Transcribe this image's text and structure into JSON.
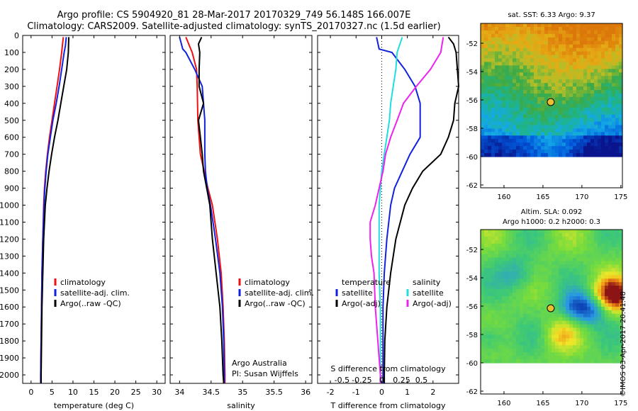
{
  "header": {
    "line1": "Argo profile: CS 5904920_81 28-Mar-2017 20170329_749 56.148S 166.007E",
    "line2": "Climatology: CARS2009. Satellite-adjusted climatology: synTS_20170327.nc (1.5d earlier)"
  },
  "depth_ticks": [
    "0",
    "100",
    "200",
    "300",
    "400",
    "500",
    "600",
    "700",
    "800",
    "900",
    "1000",
    "1100",
    "1200",
    "1300",
    "1400",
    "1500",
    "1600",
    "1700",
    "1800",
    "1900",
    "2000"
  ],
  "colors": {
    "climatology": "#ee1111",
    "satellite": "#1122dd",
    "argo": "#000000",
    "sat_salinity": "#22dddd",
    "argo_salinity": "#ee22ee"
  },
  "chart_data": [
    {
      "type": "line",
      "xlabel": "temperature (deg C)",
      "x_ticks": [
        "0",
        "5",
        "10",
        "15",
        "20",
        "25",
        "30"
      ],
      "xlim": [
        -2,
        32
      ],
      "ylim": [
        2050,
        0
      ],
      "legend": [
        "climatology",
        "satellite-adj. clim.",
        "Argo(..raw -QC)"
      ],
      "series": [
        {
          "name": "climatology",
          "depth": [
            10,
            100,
            200,
            300,
            400,
            500,
            600,
            700,
            800,
            900,
            1000,
            1200,
            1400,
            1600,
            1800,
            2000,
            2050
          ],
          "values": [
            7.7,
            7.3,
            6.8,
            6.2,
            5.6,
            5.0,
            4.4,
            3.9,
            3.5,
            3.2,
            3.0,
            2.8,
            2.6,
            2.5,
            2.4,
            2.3,
            2.3
          ]
        },
        {
          "name": "satellite-adj. clim.",
          "depth": [
            10,
            60,
            100,
            200,
            300,
            400,
            500,
            600,
            700,
            800,
            900,
            1000,
            1200,
            1400,
            1600,
            1800,
            2000,
            2050
          ],
          "values": [
            8.4,
            8.2,
            7.9,
            7.3,
            6.7,
            6.0,
            5.2,
            4.6,
            4.0,
            3.6,
            3.3,
            3.1,
            2.8,
            2.6,
            2.5,
            2.4,
            2.3,
            2.3
          ]
        },
        {
          "name": "Argo(..raw -QC)",
          "depth": [
            10,
            100,
            200,
            300,
            400,
            500,
            600,
            700,
            800,
            900,
            1000,
            1200,
            1400,
            1600,
            1800,
            2000,
            2050
          ],
          "values": [
            9.0,
            8.9,
            8.5,
            7.8,
            7.1,
            6.4,
            5.6,
            4.9,
            4.3,
            3.8,
            3.4,
            3.0,
            2.8,
            2.6,
            2.5,
            2.4,
            2.4
          ]
        }
      ]
    },
    {
      "type": "line",
      "xlabel": "salinity",
      "x_ticks": [
        "34",
        "34.5",
        "35",
        "35.5",
        "36"
      ],
      "xlim": [
        33.85,
        36.1
      ],
      "ylim": [
        2050,
        0
      ],
      "legend": [
        "climatology",
        "satellite-adj. clim.",
        "Argo(..raw -QC)"
      ],
      "annotation": [
        "Argo Australia",
        "PI: Susan Wijffels"
      ],
      "series": [
        {
          "name": "climatology",
          "depth": [
            10,
            100,
            200,
            300,
            500,
            700,
            800,
            900,
            1000,
            1200,
            1400,
            1600,
            1800,
            2000,
            2050
          ],
          "values": [
            34.1,
            34.2,
            34.27,
            34.28,
            34.29,
            34.33,
            34.39,
            34.45,
            34.52,
            34.6,
            34.66,
            34.69,
            34.71,
            34.72,
            34.72
          ]
        },
        {
          "name": "satellite-adj. clim.",
          "depth": [
            10,
            80,
            100,
            200,
            300,
            500,
            700,
            800,
            900,
            1000,
            1200,
            1400,
            1600,
            1800,
            2000,
            2050
          ],
          "values": [
            34.0,
            34.05,
            34.1,
            34.24,
            34.36,
            34.4,
            34.4,
            34.41,
            34.44,
            34.49,
            34.57,
            34.64,
            34.68,
            34.7,
            34.71,
            34.71
          ]
        },
        {
          "name": "Argo(..raw -QC)",
          "depth": [
            10,
            50,
            100,
            200,
            300,
            400,
            500,
            600,
            700,
            800,
            900,
            1000,
            1200,
            1400,
            1600,
            1800,
            2000,
            2050
          ],
          "values": [
            34.35,
            34.3,
            34.32,
            34.31,
            34.31,
            34.38,
            34.3,
            34.33,
            34.36,
            34.38,
            34.43,
            34.48,
            34.52,
            34.58,
            34.64,
            34.67,
            34.69,
            34.7
          ]
        }
      ]
    },
    {
      "type": "line",
      "xlabel": "T difference from climatology",
      "xlabel2": "S difference from climatology",
      "x_ticks": [
        "-2",
        "-1",
        "0",
        "1",
        "2"
      ],
      "xlim": [
        -2.5,
        3.0
      ],
      "ylim": [
        2050,
        0
      ],
      "s_ticks": [
        "-0.5",
        "-0.25",
        "0",
        "0.25",
        "0.5"
      ],
      "legend_temperature": [
        "temperature",
        "satellite",
        "Argo(-adj)"
      ],
      "legend_salinity": [
        "salinity",
        "satellite",
        "Argo(-adj)"
      ],
      "series": [
        {
          "name": "satellite",
          "depth": [
            10,
            80,
            100,
            200,
            300,
            400,
            600,
            700,
            800,
            900,
            1000,
            1200,
            1400,
            1600,
            1800,
            2000,
            2050
          ],
          "values": [
            -0.2,
            -0.1,
            0.4,
            0.9,
            1.3,
            1.5,
            1.5,
            1.1,
            0.8,
            0.5,
            0.35,
            0.2,
            0.1,
            0.05,
            0.05,
            0.05,
            0.05
          ]
        },
        {
          "name": "Argo(-adj)",
          "depth": [
            10,
            50,
            100,
            200,
            300,
            400,
            500,
            600,
            700,
            800,
            900,
            1000,
            1200,
            1400,
            1600,
            1800,
            2000,
            2050
          ],
          "values": [
            2.6,
            2.8,
            2.9,
            2.95,
            3.0,
            2.85,
            2.8,
            2.6,
            2.3,
            1.6,
            1.2,
            0.9,
            0.55,
            0.35,
            0.2,
            0.12,
            0.1,
            0.1
          ]
        },
        {
          "name": "satellite",
          "depth": [
            10,
            100,
            200,
            300,
            400,
            500,
            600,
            700,
            800,
            1000,
            1200,
            1400,
            1600,
            1800,
            2000,
            2050
          ],
          "values": [
            0.8,
            0.6,
            0.55,
            0.45,
            0.35,
            0.3,
            0.2,
            0.1,
            0.0,
            -0.1,
            -0.1,
            -0.1,
            -0.05,
            -0.05,
            -0.05,
            -0.05
          ]
        },
        {
          "name": "Argo(-adj)",
          "depth": [
            10,
            100,
            200,
            300,
            400,
            500,
            600,
            700,
            800,
            900,
            1000,
            1100,
            1200,
            1300,
            1400,
            1600,
            1800,
            2000,
            2050
          ],
          "values": [
            2.4,
            2.3,
            1.9,
            1.35,
            0.85,
            0.6,
            0.35,
            0.15,
            0.05,
            -0.1,
            -0.25,
            -0.45,
            -0.45,
            -0.4,
            -0.3,
            -0.25,
            -0.15,
            -0.05,
            -0.05
          ]
        }
      ]
    },
    {
      "type": "heatmap",
      "title": "sat. SST: 6.33 Argo: 9.37",
      "x_ticks": [
        "160",
        "165",
        "170",
        "175"
      ],
      "y_ticks": [
        "-52",
        "-54",
        "-56",
        "-58",
        "-60",
        "-62"
      ],
      "xlim": [
        157,
        175.2
      ],
      "ylim": [
        -62.2,
        -50.6
      ],
      "data_ylim": [
        -60,
        -50.6
      ],
      "marker": {
        "lon": 166.0,
        "lat": -56.15
      }
    },
    {
      "type": "heatmap",
      "title": "Altim. SLA: 0.092",
      "subtitle": "Argo h1000: 0.2 h2000: 0.3",
      "x_ticks": [
        "160",
        "165",
        "170",
        "175"
      ],
      "y_ticks": [
        "-52",
        "-54",
        "-56",
        "-58",
        "-60",
        "-62"
      ],
      "xlim": [
        157,
        175.2
      ],
      "ylim": [
        -62.2,
        -50.6
      ],
      "data_ylim": [
        -60,
        -50.6
      ],
      "marker": {
        "lon": 166.0,
        "lat": -56.15
      }
    }
  ],
  "credit": "©IMOS 03-Apr-2017 20:41:48"
}
